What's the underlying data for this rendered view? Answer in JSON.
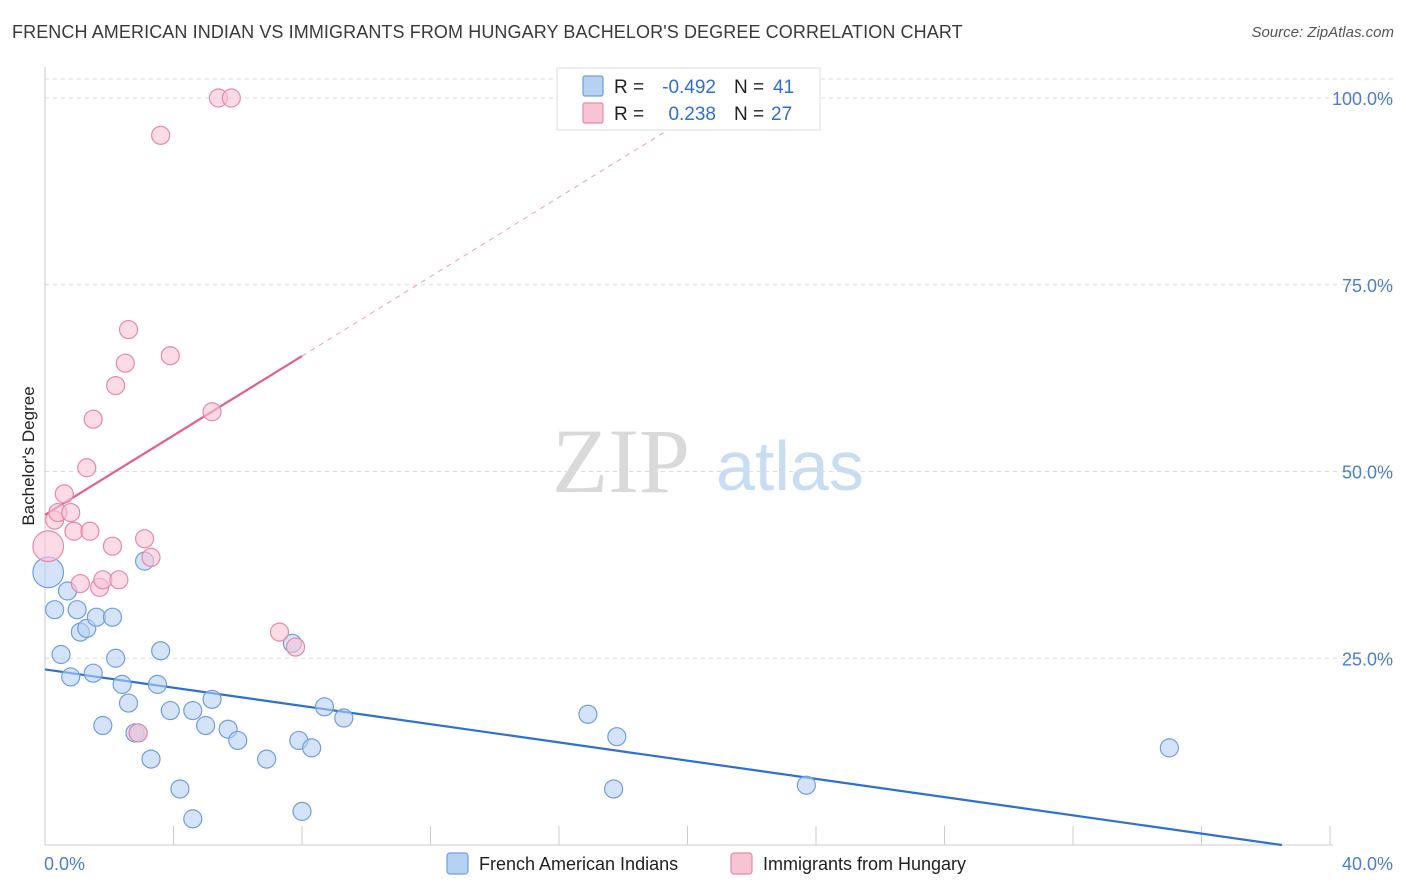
{
  "title": "FRENCH AMERICAN INDIAN VS IMMIGRANTS FROM HUNGARY BACHELOR'S DEGREE CORRELATION CHART",
  "source": "Source: ZipAtlas.com",
  "watermark": {
    "zip": "ZIP",
    "atlas": "atlas"
  },
  "legend": {
    "rows": [
      {
        "r_label": "R =",
        "r_value": "-0.492",
        "n_label": "N =",
        "n_value": "41"
      },
      {
        "r_label": "R =",
        "r_value": "0.238",
        "n_label": "N =",
        "n_value": "27"
      }
    ]
  },
  "colors": {
    "blue_fill": "#b7d1f3",
    "blue_stroke": "#6f9fe0",
    "blue_line": "#2e6fd6",
    "pink_fill": "#f8c3d3",
    "pink_stroke": "#e889a8",
    "pink_line": "#e0618d",
    "grid": "#dddddd",
    "axis_tick": "#4a7fd0"
  },
  "chart_data": {
    "type": "scatter",
    "title": "FRENCH AMERICAN INDIAN VS IMMIGRANTS FROM HUNGARY BACHELOR'S DEGREE CORRELATION CHART",
    "xlabel": "",
    "ylabel": "Bachelor's Degree",
    "xlim": [
      0,
      40
    ],
    "ylim": [
      0,
      100
    ],
    "x_tick_labels": [
      "0.0%",
      "40.0%"
    ],
    "y_ticks": [
      25,
      50,
      75,
      100
    ],
    "y_tick_labels": [
      "25.0%",
      "50.0%",
      "75.0%",
      "100.0%"
    ],
    "grid": true,
    "series": [
      {
        "name": "French American Indians",
        "color": "blue",
        "r": -0.492,
        "n": 41,
        "trend": {
          "x0": 0,
          "y0": 23.5,
          "x1": 38.5,
          "y1": 0.0,
          "solid_to": 38.5
        },
        "points": [
          [
            0.1,
            36.5,
            1.7
          ],
          [
            0.3,
            31.5,
            1
          ],
          [
            0.5,
            25.5,
            1
          ],
          [
            0.7,
            34.0,
            1
          ],
          [
            0.8,
            22.5,
            1
          ],
          [
            1.0,
            31.5,
            1
          ],
          [
            1.1,
            28.5,
            1
          ],
          [
            1.3,
            29.0,
            1
          ],
          [
            1.5,
            23.0,
            1
          ],
          [
            1.6,
            30.5,
            1
          ],
          [
            1.8,
            16.0,
            1
          ],
          [
            2.1,
            30.5,
            1
          ],
          [
            2.2,
            25.0,
            1
          ],
          [
            2.4,
            21.5,
            1
          ],
          [
            2.6,
            19.0,
            1
          ],
          [
            2.8,
            15.0,
            1
          ],
          [
            2.9,
            15.0,
            1
          ],
          [
            3.1,
            38.0,
            1
          ],
          [
            3.3,
            11.5,
            1
          ],
          [
            3.5,
            21.5,
            1
          ],
          [
            3.6,
            26.0,
            1
          ],
          [
            3.9,
            18.0,
            1
          ],
          [
            4.2,
            7.5,
            1
          ],
          [
            4.6,
            3.5,
            1
          ],
          [
            4.6,
            18.0,
            1
          ],
          [
            5.0,
            16.0,
            1
          ],
          [
            5.2,
            19.5,
            1
          ],
          [
            5.7,
            15.5,
            1
          ],
          [
            6.0,
            14.0,
            1
          ],
          [
            6.9,
            11.5,
            1
          ],
          [
            7.7,
            27.0,
            1
          ],
          [
            7.9,
            14.0,
            1
          ],
          [
            8.0,
            4.5,
            1
          ],
          [
            8.3,
            13.0,
            1
          ],
          [
            8.7,
            18.5,
            1
          ],
          [
            9.3,
            17.0,
            1
          ],
          [
            16.9,
            17.5,
            1
          ],
          [
            17.7,
            7.5,
            1
          ],
          [
            17.8,
            14.5,
            1
          ],
          [
            23.7,
            8.0,
            1
          ],
          [
            35.0,
            13.0,
            1
          ]
        ]
      },
      {
        "name": "Immigrants from Hungary",
        "color": "pink",
        "r": 0.238,
        "n": 27,
        "trend": {
          "x0": 0,
          "y0": 44.2,
          "x1": 21.0,
          "y1": 100,
          "solid_to": 8.0
        },
        "points": [
          [
            0.1,
            40.0,
            1.7
          ],
          [
            0.3,
            43.5,
            1
          ],
          [
            0.4,
            44.5,
            1
          ],
          [
            0.6,
            47.0,
            1
          ],
          [
            0.8,
            44.5,
            1
          ],
          [
            0.9,
            42.0,
            1
          ],
          [
            1.1,
            35.0,
            1
          ],
          [
            1.3,
            50.5,
            1
          ],
          [
            1.4,
            42.0,
            1
          ],
          [
            1.5,
            57.0,
            1
          ],
          [
            1.7,
            34.5,
            1
          ],
          [
            1.8,
            35.5,
            1
          ],
          [
            2.1,
            40.0,
            1
          ],
          [
            2.2,
            61.5,
            1
          ],
          [
            2.3,
            35.5,
            1
          ],
          [
            2.5,
            64.5,
            1
          ],
          [
            2.6,
            69.0,
            1
          ],
          [
            2.9,
            15.0,
            1
          ],
          [
            3.1,
            41.0,
            1
          ],
          [
            3.3,
            38.5,
            1
          ],
          [
            3.6,
            95.0,
            1
          ],
          [
            3.9,
            65.5,
            1
          ],
          [
            5.2,
            58.0,
            1
          ],
          [
            5.4,
            100.0,
            1
          ],
          [
            5.8,
            100.0,
            1
          ],
          [
            7.3,
            28.5,
            1
          ],
          [
            7.8,
            26.5,
            1
          ]
        ]
      }
    ]
  }
}
